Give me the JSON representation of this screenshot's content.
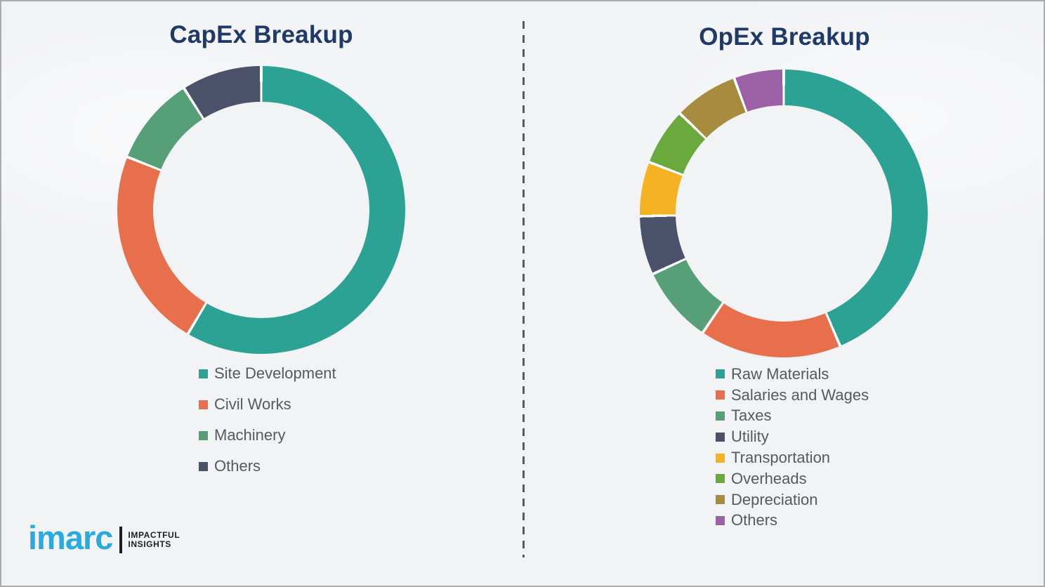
{
  "page": {
    "background": "#f2f3f5",
    "border_color": "#ababab",
    "title_color": "#1f3968",
    "legend_text_color": "#595959",
    "divider_color": "#5a5a5a",
    "segment_gap_color": "#ffffff"
  },
  "logo": {
    "brand": "imarc",
    "brand_color": "#29abe2",
    "separator_color": "#1d1d1f",
    "tagline_line1": "IMPACTFUL",
    "tagline_line2": "INSIGHTS",
    "tagline_color": "#1d1d1f"
  },
  "chart_data": [
    {
      "type": "pie",
      "donut": true,
      "title": "CapEx Breakup",
      "categories": [
        "Site Development",
        "Civil Works",
        "Machinery",
        "Others"
      ],
      "values": [
        58.5,
        22.5,
        10,
        9
      ],
      "colors": [
        "#2ba294",
        "#e76f4b",
        "#57a077",
        "#4a5168"
      ],
      "legend_position": "bottom-left",
      "units": "percent-estimated"
    },
    {
      "type": "pie",
      "donut": true,
      "title": "OpEx Breakup",
      "categories": [
        "Raw Materials",
        "Salaries and Wages",
        "Taxes",
        "Utility",
        "Transportation",
        "Overheads",
        "Depreciation",
        "Others"
      ],
      "values": [
        43.6,
        15.9,
        8.6,
        6.6,
        6.1,
        6.4,
        7.2,
        5.6
      ],
      "colors": [
        "#2ba294",
        "#e76f4b",
        "#57a077",
        "#4a5168",
        "#f5b324",
        "#6aaa3d",
        "#a78c3f",
        "#9b60a5"
      ],
      "legend_position": "bottom-left",
      "units": "percent-estimated"
    }
  ]
}
